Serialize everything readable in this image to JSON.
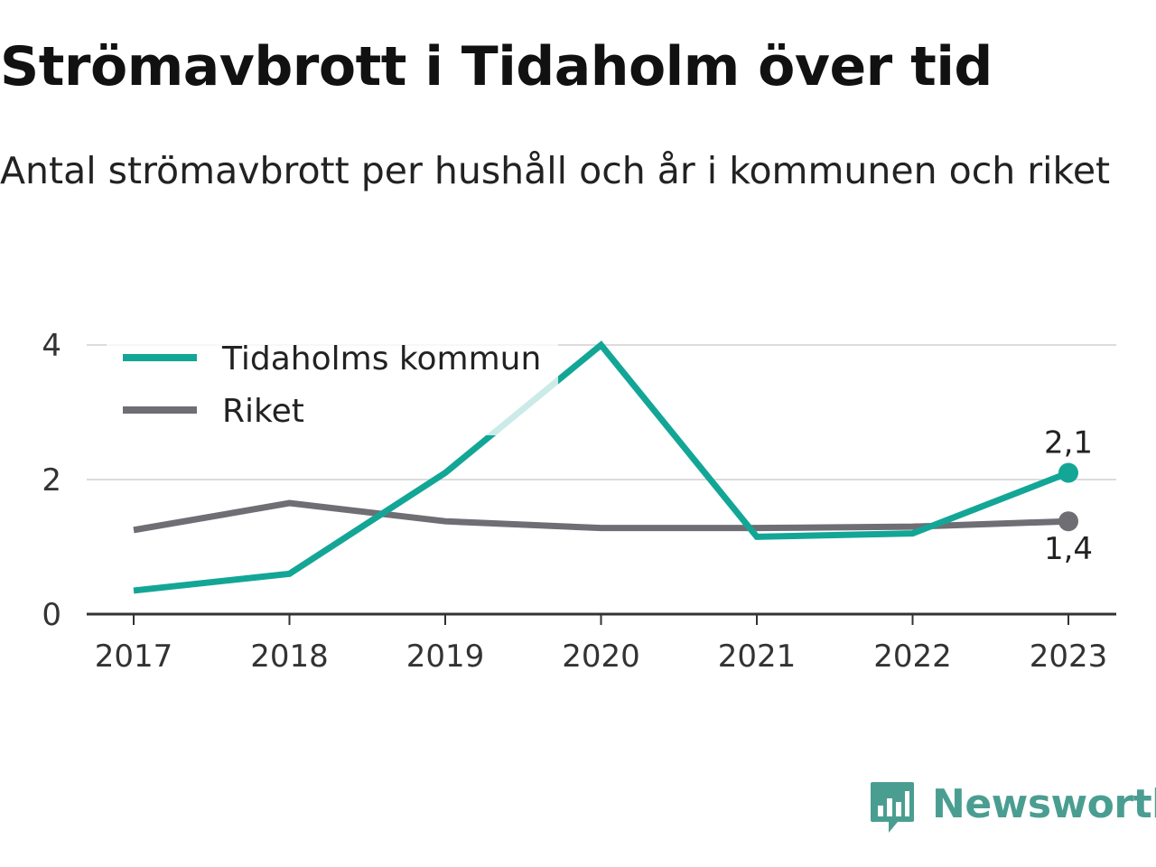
{
  "title": "Strömavbrott i Tidaholm över tid",
  "subtitle": "Antal strömavbrott per hushåll och år i kommunen och riket",
  "brand": "Newsworthy",
  "colors": {
    "accent": "#13a697",
    "secondary": "#6f6e74",
    "brand": "#4a9e91"
  },
  "chart_data": {
    "type": "line",
    "x": [
      "2017",
      "2018",
      "2019",
      "2020",
      "2021",
      "2022",
      "2023"
    ],
    "ylim": [
      0,
      4
    ],
    "yticks": [
      "0",
      "2",
      "4"
    ],
    "grid": true,
    "legend_placement": "top-left",
    "xlabel": "",
    "ylabel": "",
    "series": [
      {
        "name": "Tidaholms kommun",
        "values": [
          0.35,
          0.6,
          2.1,
          4.0,
          1.15,
          1.2,
          2.1
        ],
        "color": "#13a697",
        "end_label": "2,1"
      },
      {
        "name": "Riket",
        "values": [
          1.25,
          1.65,
          1.38,
          1.28,
          1.28,
          1.3,
          1.38
        ],
        "color": "#6f6e74",
        "end_label": "1,4"
      }
    ]
  }
}
